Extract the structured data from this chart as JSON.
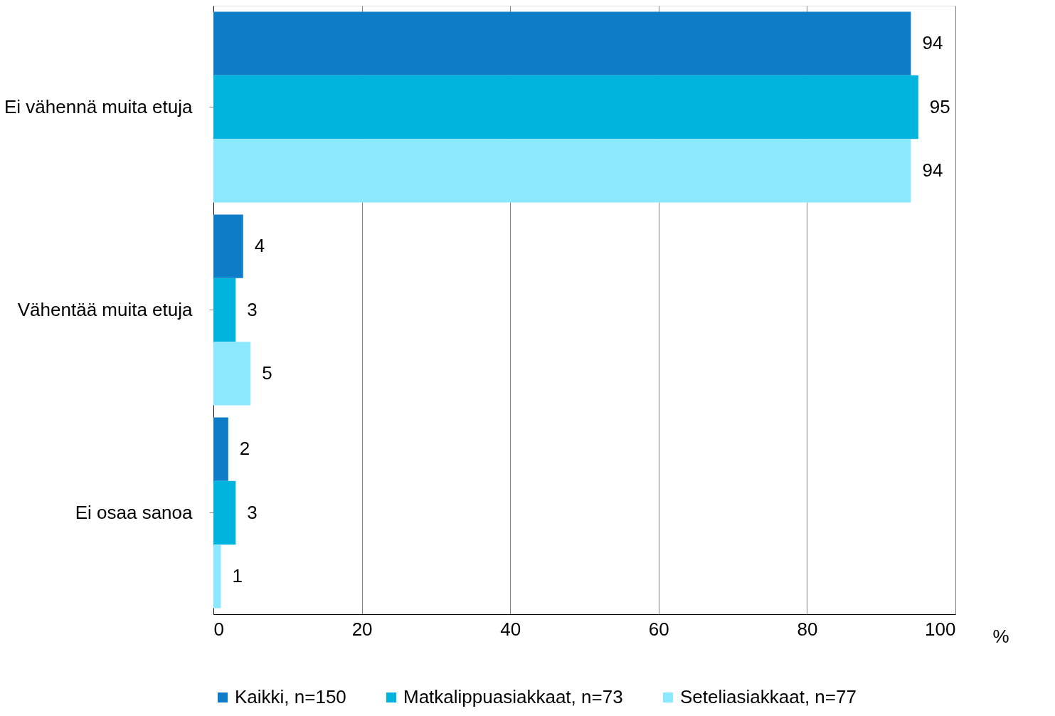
{
  "chart_data": {
    "type": "bar",
    "orientation": "horizontal",
    "xlabel": "%",
    "categories": [
      "Ei vähennä muita etuja",
      "Vähentää muita etuja",
      "Ei osaa sanoa"
    ],
    "series": [
      {
        "name": "Kaikki, n=150",
        "color": "#0e7dc8",
        "values": [
          94,
          4,
          2
        ]
      },
      {
        "name": "Matkalippuasiakkaat, n=73",
        "color": "#00b4de",
        "values": [
          95,
          3,
          3
        ]
      },
      {
        "name": "Seteliasiakkaat, n=77",
        "color": "#8ce8fc",
        "values": [
          94,
          5,
          1
        ]
      }
    ],
    "xlim": [
      0,
      100
    ],
    "xticks": [
      0,
      20,
      40,
      60,
      80,
      100
    ],
    "grid": "x",
    "legend": "bottom",
    "data_labels": true
  }
}
